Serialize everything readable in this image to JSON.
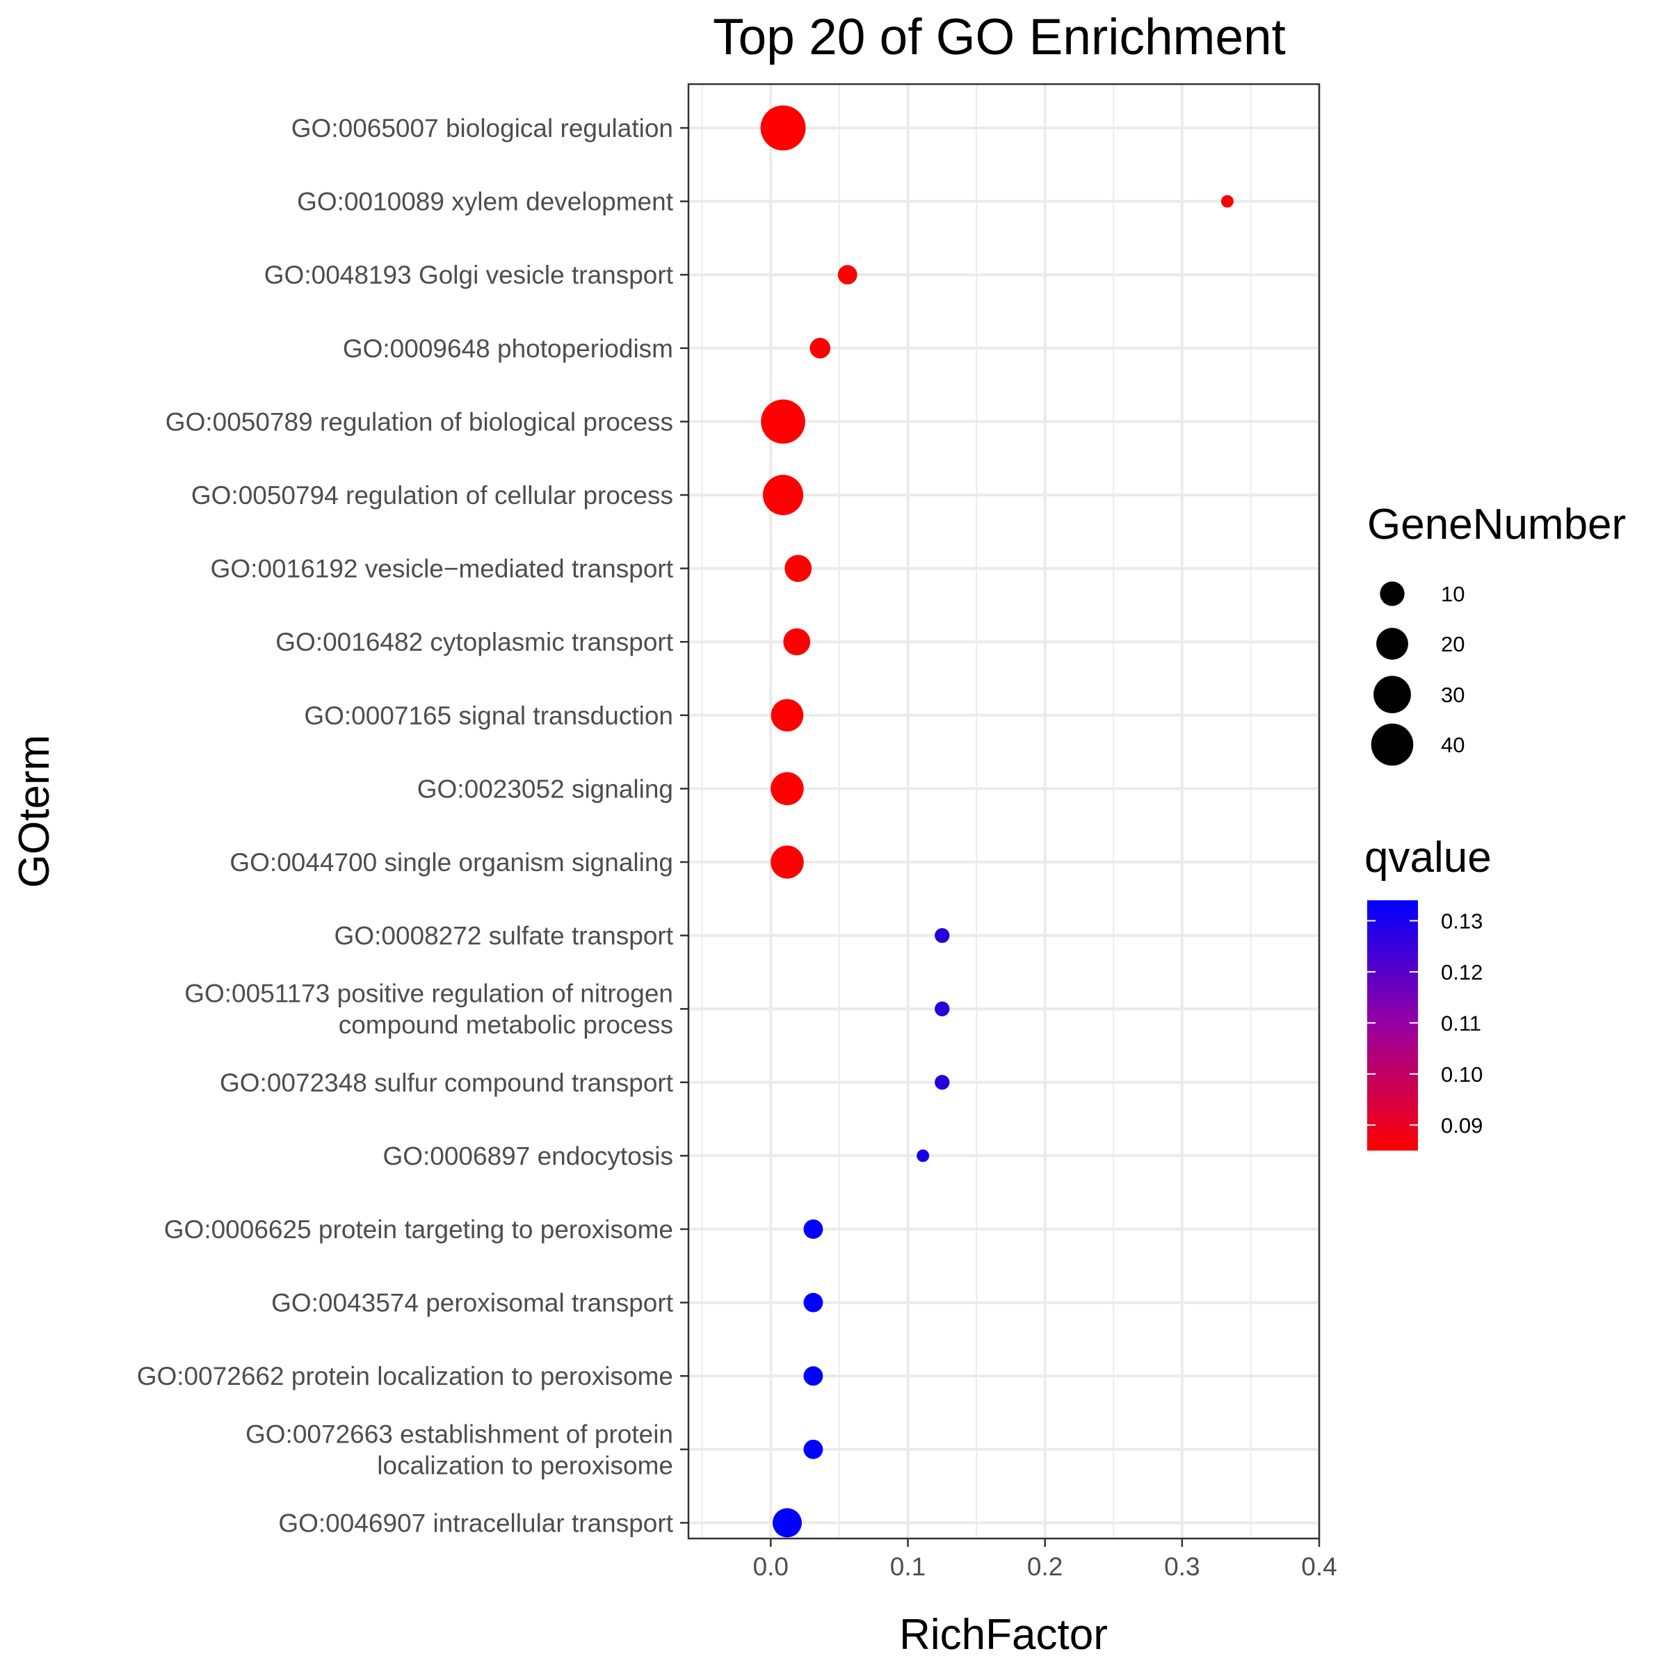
{
  "chart_data": {
    "type": "scatter",
    "title": "Top 20 of GO Enrichment",
    "xlabel": "RichFactor",
    "ylabel": "GOterm",
    "xlim": [
      -0.06,
      0.4
    ],
    "xticks": [
      "0.0",
      "0.1",
      "0.2",
      "0.3",
      "0.4"
    ],
    "grid": true,
    "size_legend": {
      "title": "GeneNumber",
      "entries": [
        {
          "label": "10",
          "value": 10
        },
        {
          "label": "20",
          "value": 20
        },
        {
          "label": "30",
          "value": 30
        },
        {
          "label": "40",
          "value": 40
        }
      ]
    },
    "color_legend": {
      "title": "qvalue",
      "low_color": "#ff0000",
      "high_color": "#0000ff",
      "range": [
        0.085,
        0.134
      ],
      "ticks": [
        {
          "label": "0.13",
          "value": 0.13
        },
        {
          "label": "0.12",
          "value": 0.12
        },
        {
          "label": "0.11",
          "value": 0.11
        },
        {
          "label": "0.10",
          "value": 0.1
        },
        {
          "label": "0.09",
          "value": 0.09
        }
      ]
    },
    "points": [
      {
        "term": [
          "GO:0065007 biological regulation"
        ],
        "x": 0.009,
        "gene_number": 47,
        "qvalue": 0.085
      },
      {
        "term": [
          "GO:0010089 xylem development"
        ],
        "x": 0.333,
        "gene_number": 1,
        "qvalue": 0.085
      },
      {
        "term": [
          "GO:0048193 Golgi vesicle transport"
        ],
        "x": 0.056,
        "gene_number": 5,
        "qvalue": 0.085
      },
      {
        "term": [
          "GO:0009648 photoperiodism"
        ],
        "x": 0.036,
        "gene_number": 6,
        "qvalue": 0.085
      },
      {
        "term": [
          "GO:0050789 regulation of biological process"
        ],
        "x": 0.009,
        "gene_number": 45,
        "qvalue": 0.085
      },
      {
        "term": [
          "GO:0050794 regulation of cellular process"
        ],
        "x": 0.009,
        "gene_number": 36,
        "qvalue": 0.085
      },
      {
        "term": [
          "GO:0016192 vesicle−mediated transport"
        ],
        "x": 0.02,
        "gene_number": 13,
        "qvalue": 0.085
      },
      {
        "term": [
          "GO:0016482 cytoplasmic transport"
        ],
        "x": 0.019,
        "gene_number": 13,
        "qvalue": 0.085
      },
      {
        "term": [
          "GO:0007165 signal transduction"
        ],
        "x": 0.012,
        "gene_number": 21,
        "qvalue": 0.085
      },
      {
        "term": [
          "GO:0023052 signaling"
        ],
        "x": 0.012,
        "gene_number": 22,
        "qvalue": 0.085
      },
      {
        "term": [
          "GO:0044700 single organism signaling"
        ],
        "x": 0.012,
        "gene_number": 22,
        "qvalue": 0.085
      },
      {
        "term": [
          "GO:0008272 sulfate transport"
        ],
        "x": 0.125,
        "gene_number": 2,
        "qvalue": 0.127
      },
      {
        "term": [
          "GO:0051173 positive regulation of nitrogen",
          "compound metabolic process"
        ],
        "x": 0.125,
        "gene_number": 2,
        "qvalue": 0.127
      },
      {
        "term": [
          "GO:0072348 sulfur compound transport"
        ],
        "x": 0.125,
        "gene_number": 2,
        "qvalue": 0.127
      },
      {
        "term": [
          "GO:0006897 endocytosis"
        ],
        "x": 0.111,
        "gene_number": 1,
        "qvalue": 0.13
      },
      {
        "term": [
          "GO:0006625 protein targeting to peroxisome"
        ],
        "x": 0.031,
        "gene_number": 5,
        "qvalue": 0.134
      },
      {
        "term": [
          "GO:0043574 peroxisomal transport"
        ],
        "x": 0.031,
        "gene_number": 5,
        "qvalue": 0.134
      },
      {
        "term": [
          "GO:0072662 protein localization to peroxisome"
        ],
        "x": 0.031,
        "gene_number": 5,
        "qvalue": 0.134
      },
      {
        "term": [
          "GO:0072663 establishment of protein",
          "localization to peroxisome"
        ],
        "x": 0.031,
        "gene_number": 5,
        "qvalue": 0.134
      },
      {
        "term": [
          "GO:0046907 intracellular transport"
        ],
        "x": 0.012,
        "gene_number": 16,
        "qvalue": 0.134
      }
    ]
  }
}
